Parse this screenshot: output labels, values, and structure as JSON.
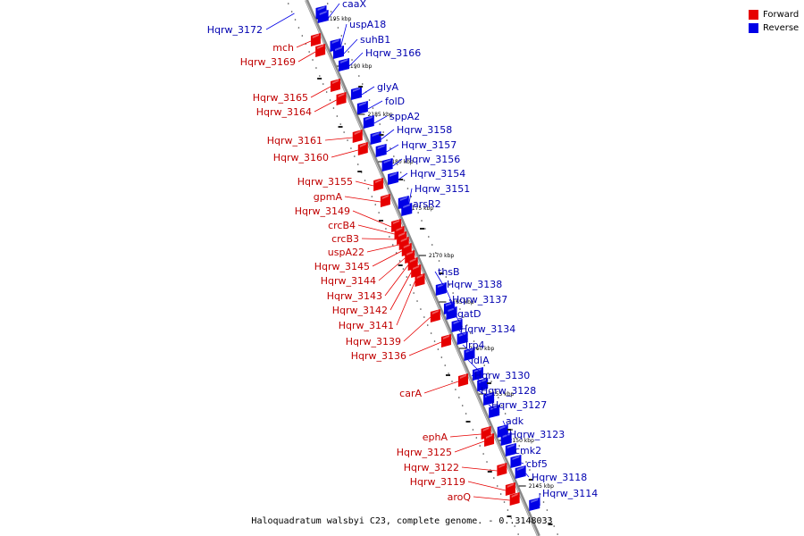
{
  "legend": {
    "forward_label": "Forward",
    "reverse_label": "Reverse",
    "forward_color": "#e60000",
    "reverse_color": "#0000e6"
  },
  "caption": "Haloquadratum walsbyi C23, complete genome. - 0..3148033",
  "ticks": [
    "2195 kbp",
    "2190 kbp",
    "2185 kbp",
    "2180 kbp",
    "2175 kbp",
    "2170 kbp",
    "2165 kbp",
    "2160 kbp",
    "2155 kbp",
    "2150 kbp",
    "2145 kbp"
  ],
  "forward_labels": [
    "mch",
    "Hqrw_3169",
    "Hqrw_3165",
    "Hqrw_3164",
    "Hqrw_3161",
    "Hqrw_3160",
    "Hqrw_3155",
    "gpmA",
    "Hqrw_3149",
    "crcB4",
    "crcB3",
    "uspA22",
    "Hqrw_3145",
    "Hqrw_3144",
    "Hqrw_3143",
    "Hqrw_3142",
    "Hqrw_3141",
    "Hqrw_3139",
    "Hqrw_3136",
    "carA",
    "ephA",
    "Hqrw_3125",
    "Hqrw_3122",
    "Hqrw_3119",
    "aroQ"
  ],
  "reverse_labels": [
    "Hqrw_3172",
    "caaX",
    "uspA18",
    "suhB1",
    "Hqrw_3166",
    "glyA",
    "folD",
    "sppA2",
    "Hqrw_3158",
    "Hqrw_3157",
    "Hqrw_3156",
    "Hqrw_3154",
    "Hqrw_3151",
    "arsR2",
    "thsB",
    "Hqrw_3138",
    "Hqrw_3137",
    "gatD",
    "Hqrw_3134",
    "lrp4",
    "idiA",
    "Hqrw_3130",
    "Hqrw_3128",
    "Hqrw_3127",
    "adk",
    "Hqrw_3123",
    "cmk2",
    "cbf5",
    "Hqrw_3118",
    "Hqrw_3114"
  ]
}
